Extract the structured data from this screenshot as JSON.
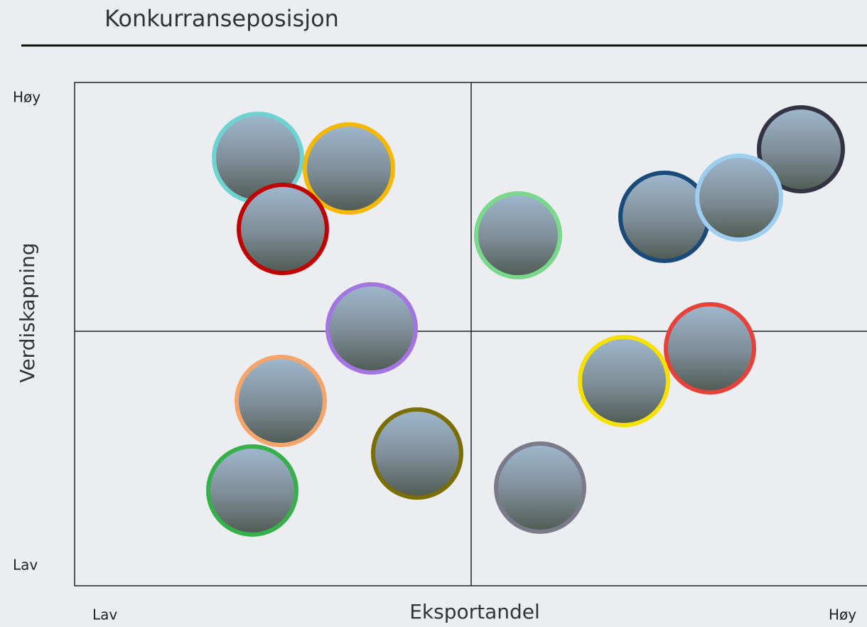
{
  "header": {
    "title": "Konkurranseposisjon"
  },
  "axes": {
    "y_label": "Verdiskapning",
    "y_high": "Høy",
    "y_low": "Lav",
    "x_label": "Eksportandel",
    "x_low": "Lav",
    "x_high": "Høy"
  }
}
